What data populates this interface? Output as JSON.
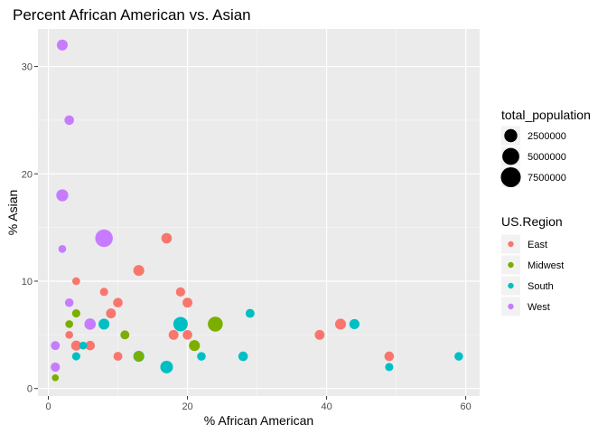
{
  "chart_data": {
    "type": "scatter",
    "title": "Percent African American vs. Asian",
    "xlabel": "% African American",
    "ylabel": "% Asian",
    "xlim": [
      -1.5,
      62
    ],
    "ylim": [
      -0.7,
      33.5
    ],
    "x_ticks": [
      0,
      20,
      40,
      60
    ],
    "y_ticks": [
      0,
      10,
      20,
      30
    ],
    "grid": true,
    "legend_placement": "right",
    "size_legend": {
      "title": "total_population",
      "entries": [
        {
          "label": "2500000",
          "value": 2500000
        },
        {
          "label": "5000000",
          "value": 5000000
        },
        {
          "label": "7500000",
          "value": 7500000
        }
      ]
    },
    "color_legend": {
      "title": "US.Region",
      "entries": [
        {
          "label": "East",
          "color": "#F8766D"
        },
        {
          "label": "Midwest",
          "color": "#7CAE00"
        },
        {
          "label": "South",
          "color": "#00BFC4"
        },
        {
          "label": "West",
          "color": "#C77CFF"
        }
      ]
    },
    "series": [
      {
        "name": "East",
        "color": "#F8766D",
        "points": [
          {
            "x": 17,
            "y": 14,
            "population": 1300000
          },
          {
            "x": 13,
            "y": 11,
            "population": 1500000
          },
          {
            "x": 4,
            "y": 10,
            "population": 500000
          },
          {
            "x": 8,
            "y": 9,
            "population": 600000
          },
          {
            "x": 19,
            "y": 9,
            "population": 900000
          },
          {
            "x": 10,
            "y": 8,
            "population": 1000000
          },
          {
            "x": 20,
            "y": 8,
            "population": 1100000
          },
          {
            "x": 9,
            "y": 7,
            "population": 1100000
          },
          {
            "x": 3,
            "y": 5,
            "population": 500000
          },
          {
            "x": 18,
            "y": 5,
            "population": 1100000
          },
          {
            "x": 20,
            "y": 5,
            "population": 1000000
          },
          {
            "x": 39,
            "y": 5,
            "population": 1100000
          },
          {
            "x": 42,
            "y": 6,
            "population": 1500000
          },
          {
            "x": 4,
            "y": 4,
            "population": 1200000
          },
          {
            "x": 6,
            "y": 4,
            "population": 1000000
          },
          {
            "x": 10,
            "y": 3,
            "population": 800000
          },
          {
            "x": 49,
            "y": 3,
            "population": 1000000
          }
        ]
      },
      {
        "name": "Midwest",
        "color": "#7CAE00",
        "points": [
          {
            "x": 3,
            "y": 6,
            "population": 500000
          },
          {
            "x": 4,
            "y": 7,
            "population": 600000
          },
          {
            "x": 11,
            "y": 5,
            "population": 800000
          },
          {
            "x": 24,
            "y": 6,
            "population": 3600000
          },
          {
            "x": 21,
            "y": 4,
            "population": 1500000
          },
          {
            "x": 13,
            "y": 3,
            "population": 1200000
          },
          {
            "x": 1,
            "y": 1,
            "population": 300000
          }
        ]
      },
      {
        "name": "South",
        "color": "#00BFC4",
        "points": [
          {
            "x": 19,
            "y": 6,
            "population": 3300000
          },
          {
            "x": 8,
            "y": 6,
            "population": 1500000
          },
          {
            "x": 29,
            "y": 7,
            "population": 800000
          },
          {
            "x": 44,
            "y": 6,
            "population": 1200000
          },
          {
            "x": 5,
            "y": 4,
            "population": 500000
          },
          {
            "x": 4,
            "y": 3,
            "population": 600000
          },
          {
            "x": 13,
            "y": 3,
            "population": 1500000
          },
          {
            "x": 17,
            "y": 2,
            "population": 2300000
          },
          {
            "x": 22,
            "y": 3,
            "population": 700000
          },
          {
            "x": 28,
            "y": 3,
            "population": 1000000
          },
          {
            "x": 49,
            "y": 2,
            "population": 600000
          },
          {
            "x": 59,
            "y": 3,
            "population": 700000
          }
        ]
      },
      {
        "name": "West",
        "color": "#C77CFF",
        "points": [
          {
            "x": 2,
            "y": 32,
            "population": 1500000
          },
          {
            "x": 3,
            "y": 25,
            "population": 1000000
          },
          {
            "x": 2,
            "y": 18,
            "population": 2000000
          },
          {
            "x": 8,
            "y": 14,
            "population": 5500000
          },
          {
            "x": 2,
            "y": 13,
            "population": 500000
          },
          {
            "x": 3,
            "y": 8,
            "population": 700000
          },
          {
            "x": 6,
            "y": 6,
            "population": 1700000
          },
          {
            "x": 1,
            "y": 4,
            "population": 800000
          },
          {
            "x": 1,
            "y": 2,
            "population": 900000
          }
        ]
      }
    ]
  }
}
